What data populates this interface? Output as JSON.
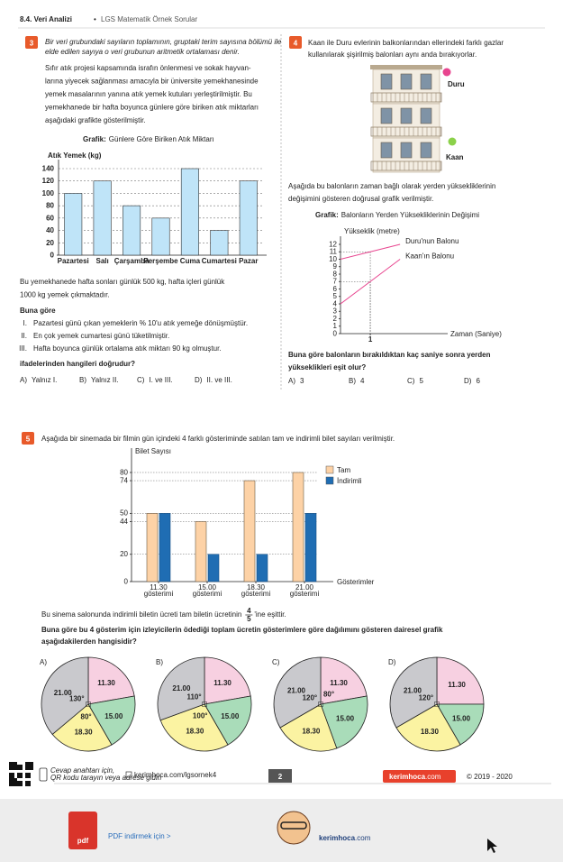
{
  "header": {
    "section": "8.4. Veri Analizi",
    "separator": "•",
    "subtitle": "LGS Matematik Örnek Sorular"
  },
  "q3": {
    "number": "3",
    "definition": [
      "Bir veri grubundaki sayıların toplamının, gruptaki terim sayısına bölümü ile",
      "elde edilen sayıya o veri grubunun aritmetik ortalaması denir."
    ],
    "paragraph": [
      "Sıfır atık projesi kapsamında israfın önlenmesi ve sokak hayvan-",
      "larına yiyecek sağlanması amacıyla bir üniversite yemekhanesinde",
      "yemek masalarının yanına atık yemek kutuları yerleştirilmiştir. Bu",
      "yemekhanede bir hafta boyunca günlere göre biriken atık miktarları",
      "aşağıdaki grafikte gösterilmiştir."
    ],
    "chart": {
      "type": "bar",
      "title_prefix": "Grafik:",
      "title": "Günlere Göre Biriken Atık Miktarı",
      "y_label": "Atık Yemek (kg)",
      "categories": [
        "Pazartesi",
        "Salı",
        "Çarşamba",
        "Perşembe",
        "Cuma",
        "Cumartesi",
        "Pazar"
      ],
      "values": [
        100,
        120,
        80,
        60,
        140,
        40,
        120
      ],
      "color": "#bfe4f8",
      "ylim": [
        0,
        140
      ],
      "yticks": [
        0,
        20,
        40,
        60,
        80,
        100,
        120,
        140
      ],
      "grid": true
    },
    "info": [
      "Bu yemekhanede hafta sonları günlük 500 kg, hafta içleri günlük",
      "1000 kg yemek çıkmaktadır."
    ],
    "lead": "Buna göre",
    "statements": [
      {
        "num": "I.",
        "text": "Pazartesi günü çıkan yemeklerin % 10'u atık yemeğe dönüşmüştür."
      },
      {
        "num": "II.",
        "text": "En çok yemek cumartesi günü tüketilmiştir."
      },
      {
        "num": "III.",
        "text": "Hafta boyunca günlük ortalama atık miktarı 90 kg olmuştur."
      }
    ],
    "question": "ifadelerinden hangileri doğrudur?",
    "options": [
      {
        "letter": "A)",
        "text": "Yalnız I."
      },
      {
        "letter": "B)",
        "text": "Yalnız II."
      },
      {
        "letter": "C)",
        "text": "I. ve III."
      },
      {
        "letter": "D)",
        "text": "II. ve III."
      }
    ]
  },
  "q4": {
    "number": "4",
    "intro": [
      "Kaan ile Duru evlerinin balkonlarından ellerindeki farklı gazlar",
      "kullanılarak şişirilmiş balonları aynı anda bırakıyorlar."
    ],
    "figure_labels": [
      "Duru",
      "Kaan"
    ],
    "paragraph": [
      "Aşağıda bu balonların zaman bağlı olarak yerden yüksekliklerinin",
      "değişimini gösteren doğrusal grafik verilmiştir."
    ],
    "chart": {
      "type": "line",
      "title_prefix": "Grafik:",
      "title": "Balonların Yerden Yüksekliklerinin Değişimi",
      "y_label": "Yükseklik (metre)",
      "x_label": "Zaman (Saniye)",
      "x": [
        0,
        1,
        2
      ],
      "series": [
        {
          "name": "Duru'nun Balonu",
          "color": "#e8458f",
          "values": [
            10,
            11,
            12
          ]
        },
        {
          "name": "Kaan'ın Balonu",
          "color": "#e8458f",
          "values": [
            4,
            7,
            10
          ]
        }
      ],
      "xlim": [
        0,
        3.6
      ],
      "xticks": [
        1
      ],
      "ylim": [
        0,
        12
      ],
      "yticks": [
        0,
        1,
        2,
        3,
        4,
        5,
        6,
        7,
        8,
        9,
        10,
        11,
        12
      ]
    },
    "question": [
      "Buna göre balonların bırakıldıktan kaç saniye sonra yerden",
      "yükseklikleri eşit olur?"
    ],
    "options": [
      {
        "letter": "A)",
        "text": "3"
      },
      {
        "letter": "B)",
        "text": "4"
      },
      {
        "letter": "C)",
        "text": "5"
      },
      {
        "letter": "D)",
        "text": "6"
      }
    ]
  },
  "q5": {
    "number": "5",
    "intro": "Aşağıda bir sinemada bir filmin gün içindeki 4 farklı gösteriminde satılan tam ve indirimli bilet sayıları verilmiştir.",
    "chart": {
      "type": "bar",
      "y_label": "Bilet Sayısı",
      "x_label": "Gösterimler",
      "categories": [
        [
          "11.30",
          "gösterimi"
        ],
        [
          "15.00",
          "gösterimi"
        ],
        [
          "18.30",
          "gösterimi"
        ],
        [
          "21.00",
          "gösterimi"
        ]
      ],
      "series": [
        {
          "name": "Tam",
          "color": "#fdd2a6",
          "values": [
            50,
            44,
            74,
            80
          ]
        },
        {
          "name": "İndirimli",
          "color": "#1f6db3",
          "values": [
            50,
            20,
            20,
            50
          ]
        }
      ],
      "ylim": [
        0,
        80
      ],
      "yticks": [
        0,
        20,
        44,
        50,
        74,
        80
      ],
      "grid": true
    },
    "note": {
      "before": "Bu sinema salonunda indirimli biletin ücreti tam biletin ücretinin",
      "numerator": 4,
      "denominator": 5,
      "after": "'ine eşittir."
    },
    "question": [
      "Buna göre bu 4 gösterim için izleyicilerin ödediği toplam ücretin gösterimlere göre dağılımını gösteren dairesel grafik",
      "aşağıdakilerden hangisidir?"
    ],
    "pies": [
      {
        "type": "pie",
        "letter": "A)",
        "slices": [
          {
            "label": "11.30",
            "angle": 80
          },
          {
            "label": "15.00",
            "angle": 70
          },
          {
            "label": "18.30",
            "angle": 80,
            "angle_label": "80°"
          },
          {
            "label": "21.00",
            "angle": 130,
            "angle_label": "130°"
          }
        ]
      },
      {
        "type": "pie",
        "letter": "B)",
        "slices": [
          {
            "label": "11.30",
            "angle": 80
          },
          {
            "label": "15.00",
            "angle": 70
          },
          {
            "label": "18.30",
            "angle": 100,
            "angle_label": "100°"
          },
          {
            "label": "21.00",
            "angle": 110,
            "angle_label": "110°"
          }
        ]
      },
      {
        "type": "pie",
        "letter": "C)",
        "slices": [
          {
            "label": "11.30",
            "angle": 80,
            "angle_label": "80°"
          },
          {
            "label": "15.00",
            "angle": 80
          },
          {
            "label": "18.30",
            "angle": 80
          },
          {
            "label": "21.00",
            "angle": 120,
            "angle_label": "120°"
          }
        ]
      },
      {
        "type": "pie",
        "letter": "D)",
        "slices": [
          {
            "label": "11.30",
            "angle": 90
          },
          {
            "label": "15.00",
            "angle": 60
          },
          {
            "label": "18.30",
            "angle": 90
          },
          {
            "label": "21.00",
            "angle": 120,
            "angle_label": "120°"
          }
        ]
      }
    ],
    "slice_colors": {
      "11.30": "#f7d0e1",
      "15.00": "#a9dcb9",
      "18.30": "#fbf3a2",
      "21.00": "#c9c9cd"
    }
  },
  "footer": {
    "qr_note": [
      "Cevap anahtarı için,",
      "QR kodu tarayın veya adrese gidin"
    ],
    "link": "kerimhoca.com/lgsornek4",
    "page": "2",
    "brand": {
      "name": "kerimhoca",
      "tld": ".com"
    },
    "copyright": "© 2019 - 2020"
  },
  "banner": {
    "icon": "pdf",
    "text": "PDF indirmek için >",
    "brand": {
      "name": "kerimhoca",
      "tld": ".com"
    }
  }
}
